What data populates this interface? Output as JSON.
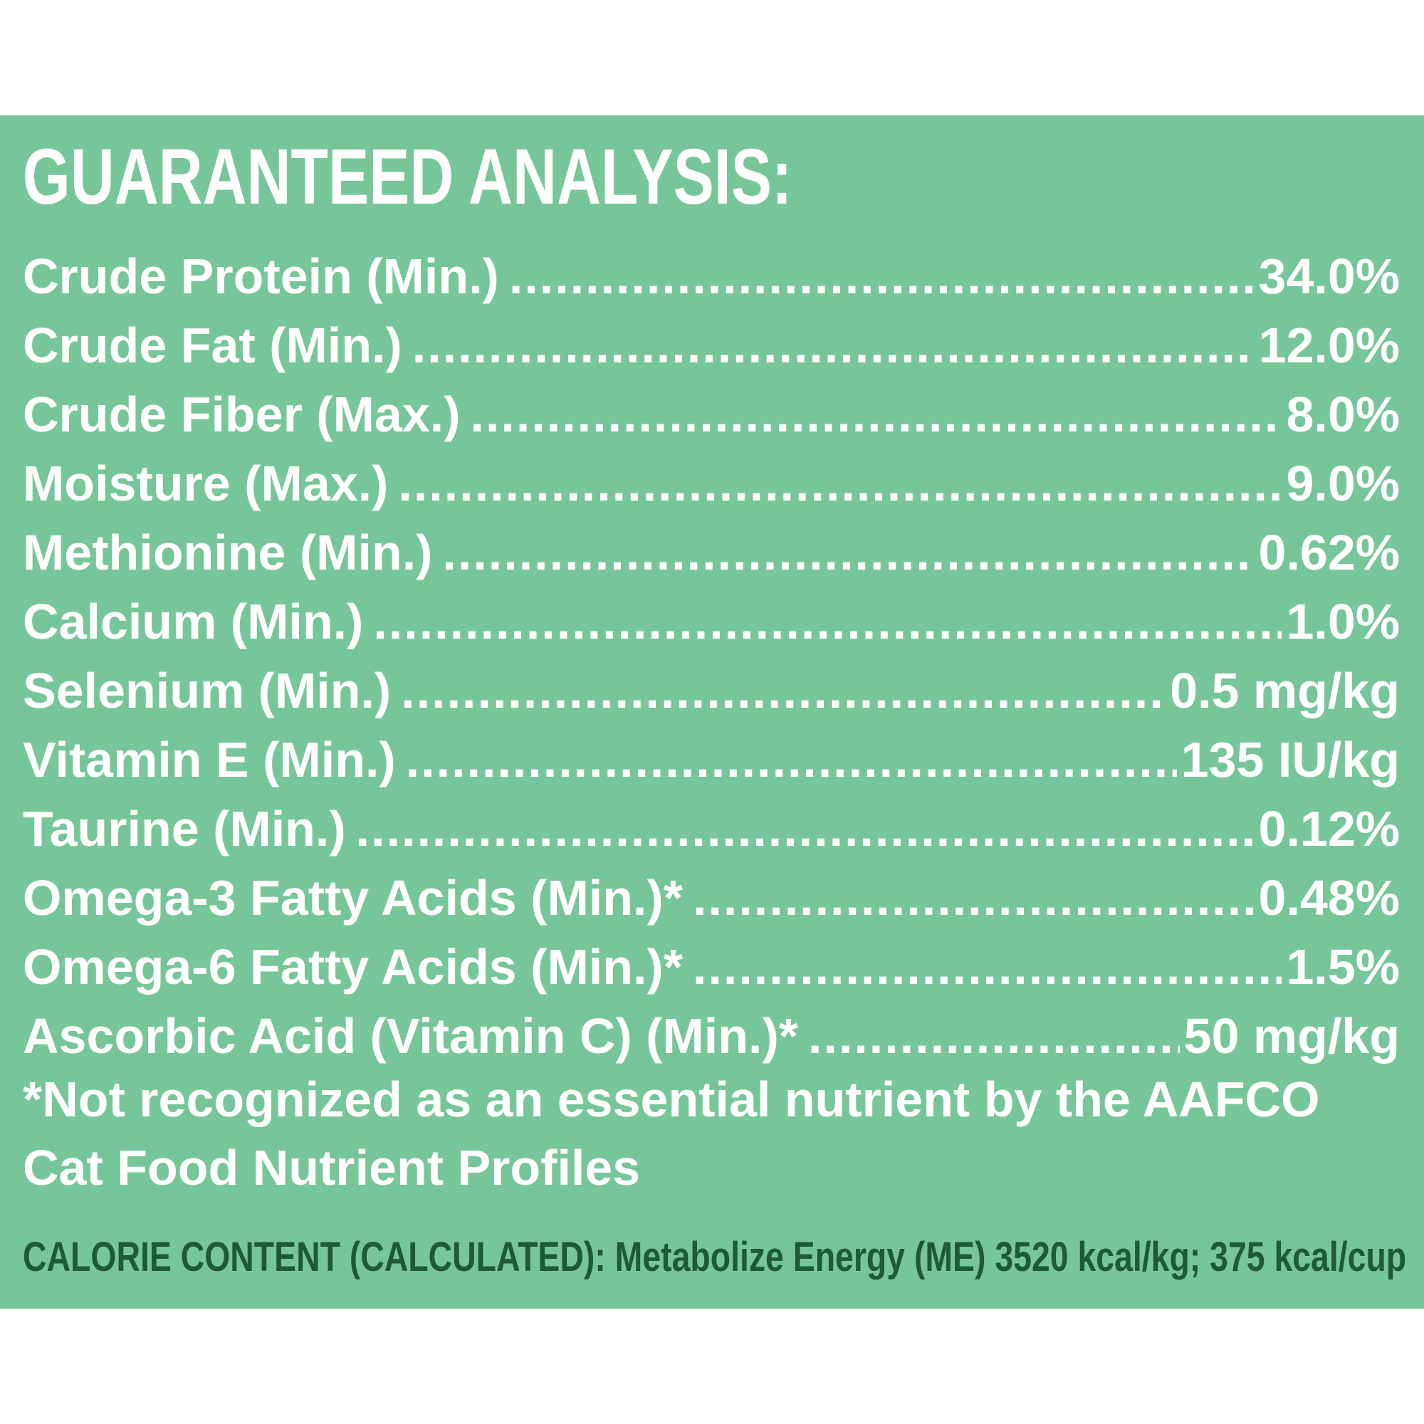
{
  "title": "GUARANTEED ANALYSIS:",
  "rows": [
    {
      "label": "Crude Protein (Min.)",
      "value": "34.0%"
    },
    {
      "label": "Crude Fat (Min.)",
      "value": "12.0%"
    },
    {
      "label": "Crude Fiber (Max.)",
      "value": "8.0%"
    },
    {
      "label": "Moisture (Max.)",
      "value": "9.0%"
    },
    {
      "label": "Methionine (Min.)",
      "value": "0.62%"
    },
    {
      "label": "Calcium (Min.)",
      "value": "1.0%"
    },
    {
      "label": "Selenium (Min.)",
      "value": "0.5 mg/kg"
    },
    {
      "label": "Vitamin E (Min.)",
      "value": "135 IU/kg"
    },
    {
      "label": "Taurine (Min.)",
      "value": "0.12%"
    },
    {
      "label": "Omega-3 Fatty Acids (Min.)*",
      "value": "0.48%"
    },
    {
      "label": "Omega-6 Fatty Acids (Min.)*",
      "value": "1.5%"
    },
    {
      "label": "Ascorbic Acid (Vitamin C) (Min.)*",
      "value": "50 mg/kg"
    }
  ],
  "footnote": "*Not recognized as an essential nutrient by the AAFCO Cat Food Nutrient Profiles",
  "calorie_content": "CALORIE CONTENT (CALCULATED): Metabolize Energy (ME) 3520 kcal/kg; 375 kcal/cup",
  "colors": {
    "panel_background": "#77c69a",
    "text": "#ffffff",
    "calorie_text": "#1e5a34"
  }
}
